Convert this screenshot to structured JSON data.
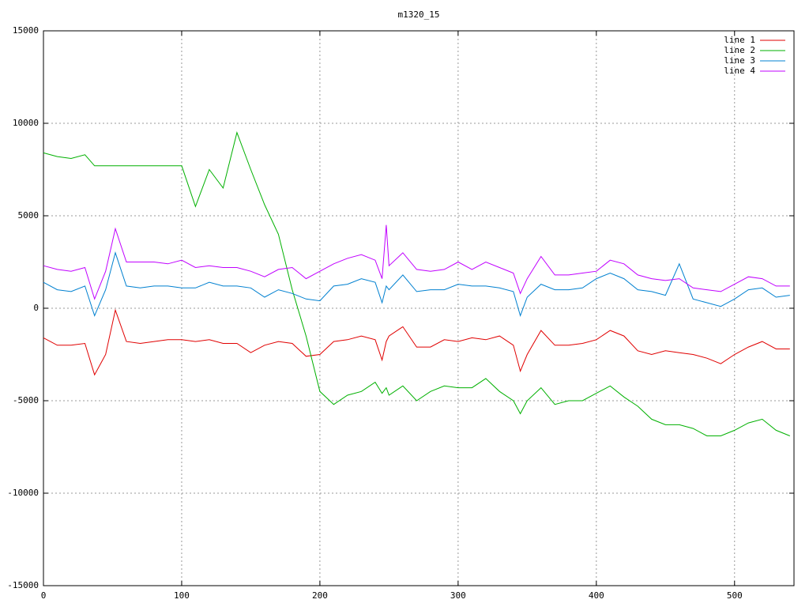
{
  "chart_data": {
    "type": "line",
    "title": "m1320_15",
    "x": [
      0,
      10,
      20,
      30,
      37,
      45,
      52,
      60,
      70,
      80,
      90,
      100,
      110,
      120,
      130,
      140,
      150,
      160,
      170,
      180,
      190,
      200,
      210,
      220,
      230,
      240,
      245,
      248,
      250,
      260,
      270,
      280,
      290,
      300,
      310,
      320,
      330,
      340,
      345,
      350,
      360,
      370,
      380,
      390,
      400,
      410,
      420,
      430,
      440,
      450,
      460,
      470,
      480,
      490,
      500,
      510,
      520,
      530,
      540
    ],
    "series": [
      {
        "name": "line 1",
        "color": "#e00000",
        "values": [
          -1600,
          -2000,
          -2000,
          -1900,
          -3600,
          -2500,
          -100,
          -1800,
          -1900,
          -1800,
          -1700,
          -1700,
          -1800,
          -1700,
          -1900,
          -1900,
          -2400,
          -2000,
          -1800,
          -1900,
          -2600,
          -2500,
          -1800,
          -1700,
          -1500,
          -1700,
          -2800,
          -1800,
          -1500,
          -1000,
          -2100,
          -2100,
          -1700,
          -1800,
          -1600,
          -1700,
          -1500,
          -2000,
          -3400,
          -2500,
          -1200,
          -2000,
          -2000,
          -1900,
          -1700,
          -1200,
          -1500,
          -2300,
          -2500,
          -2300,
          -2400,
          -2500,
          -2700,
          -3000,
          -2500,
          -2100,
          -1800,
          -2200,
          -2200
        ]
      },
      {
        "name": "line 2",
        "color": "#00b000",
        "values": [
          8400,
          8200,
          8100,
          8300,
          7700,
          7700,
          7700,
          7700,
          7700,
          7700,
          7700,
          7700,
          5500,
          7500,
          6500,
          9500,
          7500,
          5600,
          4000,
          1000,
          -1500,
          -4500,
          -5200,
          -4700,
          -4500,
          -4000,
          -4600,
          -4300,
          -4700,
          -4200,
          -5000,
          -4500,
          -4200,
          -4300,
          -4300,
          -3800,
          -4500,
          -5000,
          -5700,
          -5000,
          -4300,
          -5200,
          -5000,
          -5000,
          -4600,
          -4200,
          -4800,
          -5300,
          -6000,
          -6300,
          -6300,
          -6500,
          -6900,
          -6900,
          -6600,
          -6200,
          -6000,
          -6600,
          -6900
        ]
      },
      {
        "name": "line 3",
        "color": "#0080d0",
        "values": [
          1400,
          1000,
          900,
          1200,
          -400,
          1000,
          3000,
          1200,
          1100,
          1200,
          1200,
          1100,
          1100,
          1400,
          1200,
          1200,
          1100,
          600,
          1000,
          800,
          500,
          400,
          1200,
          1300,
          1600,
          1400,
          300,
          1200,
          1000,
          1800,
          900,
          1000,
          1000,
          1300,
          1200,
          1200,
          1100,
          900,
          -400,
          600,
          1300,
          1000,
          1000,
          1100,
          1600,
          1900,
          1600,
          1000,
          900,
          700,
          2400,
          500,
          300,
          100,
          500,
          1000,
          1100,
          600,
          700
        ]
      },
      {
        "name": "line 4",
        "color": "#c000ff",
        "values": [
          2300,
          2100,
          2000,
          2200,
          500,
          2000,
          4300,
          2500,
          2500,
          2500,
          2400,
          2600,
          2200,
          2300,
          2200,
          2200,
          2000,
          1700,
          2100,
          2200,
          1600,
          2000,
          2400,
          2700,
          2900,
          2600,
          1600,
          4500,
          2300,
          3000,
          2100,
          2000,
          2100,
          2500,
          2100,
          2500,
          2200,
          1900,
          800,
          1600,
          2800,
          1800,
          1800,
          1900,
          2000,
          2600,
          2400,
          1800,
          1600,
          1500,
          1600,
          1100,
          1000,
          900,
          1300,
          1700,
          1600,
          1200,
          1200
        ]
      }
    ],
    "xlim": [
      0,
      543
    ],
    "xticks": [
      0,
      100,
      200,
      300,
      400,
      500
    ],
    "ylim": [
      -15000,
      15000
    ],
    "yticks": [
      -15000,
      -10000,
      -5000,
      0,
      5000,
      10000,
      15000
    ],
    "grid": true,
    "legend": "top-right"
  }
}
